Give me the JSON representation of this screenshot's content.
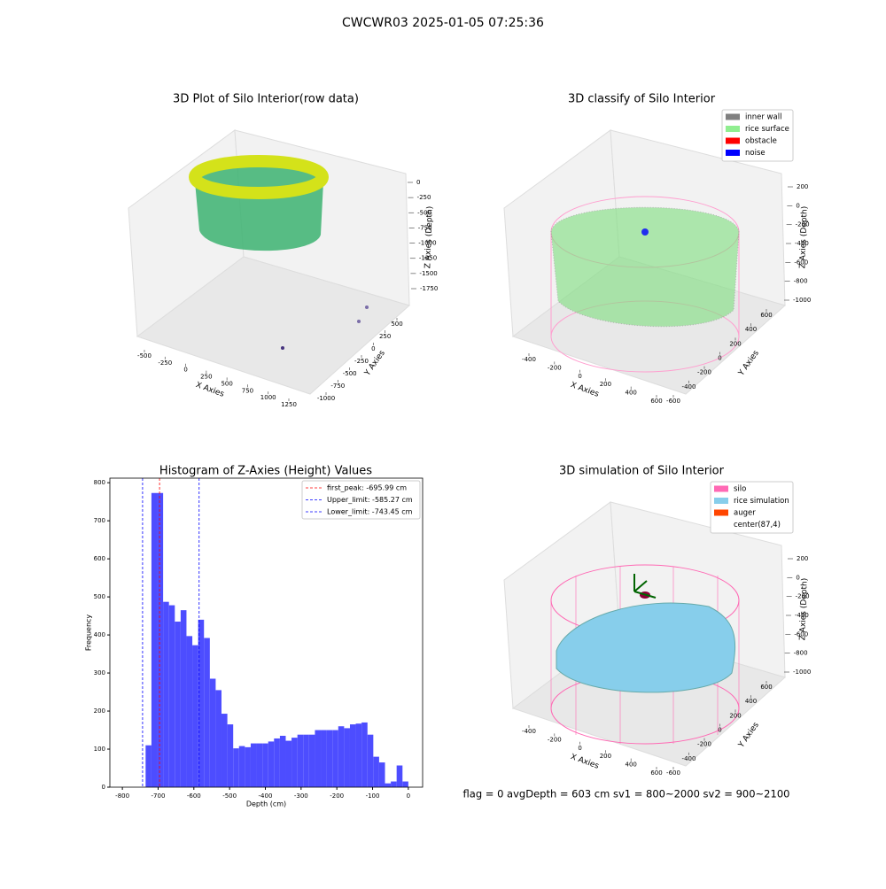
{
  "title": "CWCWR03 2025-01-05 07:25:36",
  "chart_data": [
    {
      "type": "scatter3d",
      "title": "3D Plot of Silo Interior(row data)",
      "x_label": "X Axies",
      "y_label": "Y Axies",
      "z_label": "Z Axies (Depth)",
      "xticks": [
        -500,
        -250,
        0,
        250,
        500,
        750,
        1000,
        1250
      ],
      "yticks": [
        -1000,
        -750,
        -500,
        -250,
        0,
        250,
        500
      ],
      "zticks": [
        0,
        -250,
        -500,
        -750,
        -1000,
        -1250,
        -1500,
        -1750
      ]
    },
    {
      "type": "scatter3d",
      "title": "3D classify of Silo Interior",
      "x_label": "X Axies",
      "y_label": "Y Axies",
      "z_label": "Z Axies (Depth)",
      "xticks": [
        -400,
        -200,
        0,
        200,
        400,
        600
      ],
      "yticks": [
        -600,
        -400,
        -200,
        0,
        200,
        400,
        600
      ],
      "zticks": [
        200,
        0,
        -200,
        -400,
        -600,
        -800,
        -1000
      ],
      "series": [
        {
          "name": "inner wall",
          "color": "#808080"
        },
        {
          "name": "rice surface",
          "color": "#90ee90"
        },
        {
          "name": "obstacle",
          "color": "#ff0000"
        },
        {
          "name": "noise",
          "color": "#0000ff"
        }
      ]
    },
    {
      "type": "histogram",
      "title": "Histogram of Z-Axies (Height) Values",
      "x_label": "Depth (cm)",
      "y_label": "Frequency",
      "color": "#4d4dff",
      "bins": [
        -735,
        -718.7,
        -702.3,
        -686,
        -669.7,
        -653.3,
        -637,
        -620.7,
        -604.3,
        -588,
        -571.7,
        -555.3,
        -539,
        -522.7,
        -506.3,
        -490,
        -473.7,
        -457.3,
        -441,
        -424.7,
        -408.3,
        -392,
        -375.7,
        -359.3,
        -343,
        -326.7,
        -310.3,
        -294,
        -277.7,
        -261.3,
        -245,
        -228.7,
        -212.3,
        -196,
        -179.7,
        -163.3,
        -147,
        -130.7,
        -114.3,
        -98,
        -81.7,
        -65.3,
        -49,
        -32.7,
        -16.3,
        0
      ],
      "values": [
        110,
        773,
        773,
        487,
        478,
        435,
        465,
        397,
        373,
        440,
        392,
        285,
        255,
        193,
        165,
        102,
        108,
        105,
        115,
        115,
        115,
        120,
        128,
        135,
        122,
        130,
        138,
        138,
        138,
        150,
        150,
        150,
        150,
        160,
        155,
        165,
        167,
        170,
        138,
        80,
        65,
        10,
        15,
        57,
        15
      ],
      "xlim": [
        -835,
        40
      ],
      "ylim": [
        0,
        812
      ],
      "xticks": [
        -800,
        -700,
        -600,
        -500,
        -400,
        -300,
        -200,
        -100,
        0
      ],
      "yticks": [
        0,
        100,
        200,
        300,
        400,
        500,
        600,
        700,
        800
      ],
      "lines": [
        {
          "name": "first_peak: -695.99 cm",
          "value": -695.99,
          "color": "#ff0000"
        },
        {
          "name": "Upper_limit: -585.27 cm",
          "value": -585.27,
          "color": "#0000ff"
        },
        {
          "name": "Lower_limit: -743.45 cm",
          "value": -743.45,
          "color": "#0000ff"
        }
      ],
      "legend": "upper right"
    },
    {
      "type": "surface3d",
      "title": "3D simulation of Silo Interior",
      "x_label": "X Axies",
      "y_label": "Y Axies",
      "z_label": "Z Axies (Depth)",
      "xticks": [
        -400,
        -200,
        0,
        200,
        400,
        600
      ],
      "yticks": [
        -600,
        -400,
        -200,
        0,
        200,
        400,
        600
      ],
      "zticks": [
        200,
        0,
        -200,
        -400,
        -600,
        -800,
        -1000
      ],
      "series": [
        {
          "name": "silo",
          "color": "#ff69b4"
        },
        {
          "name": "rice simulation",
          "color": "#87ceeb"
        },
        {
          "name": "auger",
          "color": "#ff4500"
        },
        {
          "name": "center(87,4)"
        }
      ],
      "annotation": "flag = 0     avgDepth = 603 cm  sv1 = 800~2000  sv2 = 900~2100"
    }
  ]
}
